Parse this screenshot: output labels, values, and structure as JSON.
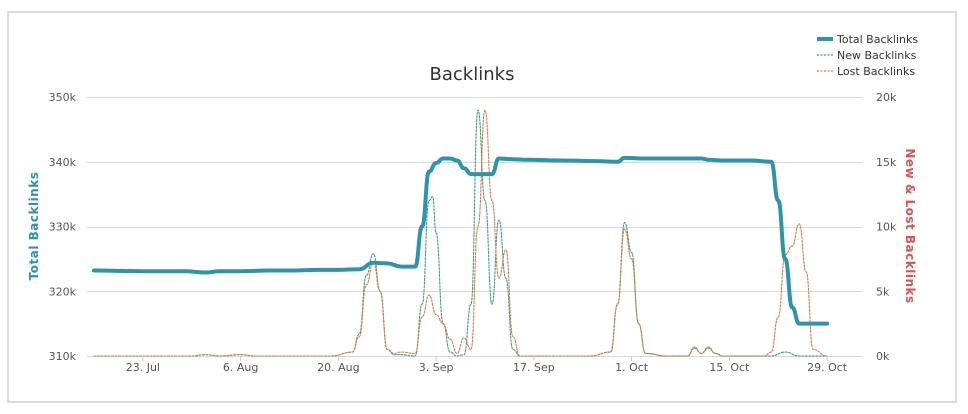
{
  "chart_data": {
    "type": "line",
    "title": "Backlinks",
    "y_left": {
      "label": "Total Backlinks",
      "color": "#2e93ab",
      "range": [
        310000,
        350000
      ],
      "ticks": [
        {
          "value": 310000,
          "label": "310k"
        },
        {
          "value": 320000,
          "label": "320k"
        },
        {
          "value": 330000,
          "label": "330k"
        },
        {
          "value": 340000,
          "label": "340k"
        },
        {
          "value": 350000,
          "label": "350k"
        }
      ]
    },
    "y_right": {
      "label": "New & Lost Backlinks",
      "color": "#d9534f",
      "range": [
        0,
        20000
      ],
      "ticks": [
        {
          "value": 0,
          "label": "0k"
        },
        {
          "value": 5000,
          "label": "5k"
        },
        {
          "value": 10000,
          "label": "10k"
        },
        {
          "value": 15000,
          "label": "15k"
        },
        {
          "value": 20000,
          "label": "20k"
        }
      ]
    },
    "x_axis": {
      "range": [
        "2016-07-15",
        "2016-11-03"
      ],
      "ticks": [
        {
          "date": "2016-07-23",
          "label": "23. Jul"
        },
        {
          "date": "2016-08-06",
          "label": "6. Aug"
        },
        {
          "date": "2016-08-20",
          "label": "20. Aug"
        },
        {
          "date": "2016-09-03",
          "label": "3. Sep"
        },
        {
          "date": "2016-09-17",
          "label": "17. Sep"
        },
        {
          "date": "2016-10-01",
          "label": "1. Oct"
        },
        {
          "date": "2016-10-15",
          "label": "15. Oct"
        },
        {
          "date": "2016-10-29",
          "label": "29. Oct"
        }
      ]
    },
    "grid": true,
    "legend": "top-right",
    "series": [
      {
        "name": "Total Backlinks",
        "axis": "left",
        "color": "#2e93ab",
        "style": "solid",
        "points": [
          [
            "2016-07-16",
            323200
          ],
          [
            "2016-07-23",
            323100
          ],
          [
            "2016-07-29",
            323100
          ],
          [
            "2016-08-01",
            322900
          ],
          [
            "2016-08-03",
            323100
          ],
          [
            "2016-08-06",
            323100
          ],
          [
            "2016-08-10",
            323200
          ],
          [
            "2016-08-13",
            323200
          ],
          [
            "2016-08-17",
            323300
          ],
          [
            "2016-08-20",
            323300
          ],
          [
            "2016-08-23",
            323400
          ],
          [
            "2016-08-25",
            324400
          ],
          [
            "2016-08-27",
            324300
          ],
          [
            "2016-08-29",
            323800
          ],
          [
            "2016-08-31",
            323800
          ],
          [
            "2016-09-01",
            330000
          ],
          [
            "2016-09-02",
            338500
          ],
          [
            "2016-09-03",
            339800
          ],
          [
            "2016-09-04",
            340500
          ],
          [
            "2016-09-05",
            340500
          ],
          [
            "2016-09-06",
            340200
          ],
          [
            "2016-09-07",
            339000
          ],
          [
            "2016-09-08",
            338100
          ],
          [
            "2016-09-10",
            338100
          ],
          [
            "2016-09-11",
            338100
          ],
          [
            "2016-09-12",
            340500
          ],
          [
            "2016-09-14",
            340400
          ],
          [
            "2016-09-16",
            340300
          ],
          [
            "2016-09-21",
            340200
          ],
          [
            "2016-09-26",
            340100
          ],
          [
            "2016-09-29",
            340000
          ],
          [
            "2016-09-30",
            340600
          ],
          [
            "2016-10-03",
            340500
          ],
          [
            "2016-10-08",
            340500
          ],
          [
            "2016-10-11",
            340500
          ],
          [
            "2016-10-12",
            340300
          ],
          [
            "2016-10-14",
            340200
          ],
          [
            "2016-10-18",
            340200
          ],
          [
            "2016-10-21",
            340000
          ],
          [
            "2016-10-22",
            334000
          ],
          [
            "2016-10-23",
            325000
          ],
          [
            "2016-10-24",
            317500
          ],
          [
            "2016-10-25",
            315000
          ],
          [
            "2016-10-29",
            315000
          ]
        ]
      },
      {
        "name": "New Backlinks",
        "axis": "right",
        "color": "#3aa37d",
        "style": "dashed",
        "points": [
          [
            "2016-07-16",
            0
          ],
          [
            "2016-07-30",
            0
          ],
          [
            "2016-08-01",
            100
          ],
          [
            "2016-08-03",
            0
          ],
          [
            "2016-08-06",
            100
          ],
          [
            "2016-08-08",
            0
          ],
          [
            "2016-08-16",
            0
          ],
          [
            "2016-08-19",
            0
          ],
          [
            "2016-08-22",
            300
          ],
          [
            "2016-08-23",
            1700
          ],
          [
            "2016-08-24",
            6200
          ],
          [
            "2016-08-25",
            7900
          ],
          [
            "2016-08-26",
            5000
          ],
          [
            "2016-08-27",
            500
          ],
          [
            "2016-08-28",
            100
          ],
          [
            "2016-08-29",
            100
          ],
          [
            "2016-08-31",
            0
          ],
          [
            "2016-09-01",
            4000
          ],
          [
            "2016-09-02",
            12000
          ],
          [
            "2016-09-02.5",
            12300
          ],
          [
            "2016-09-03",
            9500
          ],
          [
            "2016-09-04",
            2500
          ],
          [
            "2016-09-05",
            300
          ],
          [
            "2016-09-06",
            0
          ],
          [
            "2016-09-07",
            100
          ],
          [
            "2016-09-08",
            4000
          ],
          [
            "2016-09-09",
            19000
          ],
          [
            "2016-09-10",
            12000
          ],
          [
            "2016-09-11",
            4000
          ],
          [
            "2016-09-12",
            10500
          ],
          [
            "2016-09-13",
            6000
          ],
          [
            "2016-09-14",
            500
          ],
          [
            "2016-09-15",
            0
          ],
          [
            "2016-09-19",
            0
          ],
          [
            "2016-09-25",
            0
          ],
          [
            "2016-09-28",
            300
          ],
          [
            "2016-09-29",
            4000
          ],
          [
            "2016-09-30",
            10300
          ],
          [
            "2016-10-01",
            8000
          ],
          [
            "2016-10-02",
            2500
          ],
          [
            "2016-10-03",
            200
          ],
          [
            "2016-10-06",
            0
          ],
          [
            "2016-10-09",
            0
          ],
          [
            "2016-10-10",
            600
          ],
          [
            "2016-10-11",
            200
          ],
          [
            "2016-10-12",
            600
          ],
          [
            "2016-10-13",
            200
          ],
          [
            "2016-10-14",
            0
          ],
          [
            "2016-10-21",
            0
          ],
          [
            "2016-10-23",
            300
          ],
          [
            "2016-10-25",
            0
          ],
          [
            "2016-10-29",
            0
          ]
        ]
      },
      {
        "name": "Lost Backlinks",
        "axis": "right",
        "color": "#d97b4f",
        "style": "dashed",
        "points": [
          [
            "2016-07-16",
            0
          ],
          [
            "2016-07-30",
            0
          ],
          [
            "2016-08-01",
            100
          ],
          [
            "2016-08-03",
            0
          ],
          [
            "2016-08-06",
            100
          ],
          [
            "2016-08-08",
            0
          ],
          [
            "2016-08-16",
            0
          ],
          [
            "2016-08-19",
            0
          ],
          [
            "2016-08-22",
            300
          ],
          [
            "2016-08-23",
            1500
          ],
          [
            "2016-08-24",
            5500
          ],
          [
            "2016-08-25",
            7200
          ],
          [
            "2016-08-26",
            5000
          ],
          [
            "2016-08-27",
            500
          ],
          [
            "2016-08-28",
            200
          ],
          [
            "2016-08-29",
            300
          ],
          [
            "2016-08-31",
            200
          ],
          [
            "2016-09-01",
            3000
          ],
          [
            "2016-09-02",
            4700
          ],
          [
            "2016-09-03",
            3200
          ],
          [
            "2016-09-04",
            2500
          ],
          [
            "2016-09-05",
            1300
          ],
          [
            "2016-09-06",
            200
          ],
          [
            "2016-09-07",
            1400
          ],
          [
            "2016-09-08",
            500
          ],
          [
            "2016-09-09",
            10000
          ],
          [
            "2016-09-10",
            19000
          ],
          [
            "2016-09-11",
            12000
          ],
          [
            "2016-09-12",
            6000
          ],
          [
            "2016-09-13",
            8200
          ],
          [
            "2016-09-14",
            1500
          ],
          [
            "2016-09-15",
            0
          ],
          [
            "2016-09-19",
            0
          ],
          [
            "2016-09-25",
            0
          ],
          [
            "2016-09-28",
            300
          ],
          [
            "2016-09-29",
            4000
          ],
          [
            "2016-09-30",
            9800
          ],
          [
            "2016-10-01",
            7500
          ],
          [
            "2016-10-02",
            2500
          ],
          [
            "2016-10-03",
            200
          ],
          [
            "2016-10-06",
            0
          ],
          [
            "2016-10-09",
            0
          ],
          [
            "2016-10-10",
            700
          ],
          [
            "2016-10-11",
            200
          ],
          [
            "2016-10-12",
            700
          ],
          [
            "2016-10-13",
            200
          ],
          [
            "2016-10-14",
            0
          ],
          [
            "2016-10-20",
            0
          ],
          [
            "2016-10-21",
            300
          ],
          [
            "2016-10-22",
            3000
          ],
          [
            "2016-10-23",
            7800
          ],
          [
            "2016-10-24",
            8500
          ],
          [
            "2016-10-25",
            10200
          ],
          [
            "2016-10-26",
            6500
          ],
          [
            "2016-10-27",
            500
          ],
          [
            "2016-10-29",
            0
          ]
        ]
      }
    ]
  }
}
